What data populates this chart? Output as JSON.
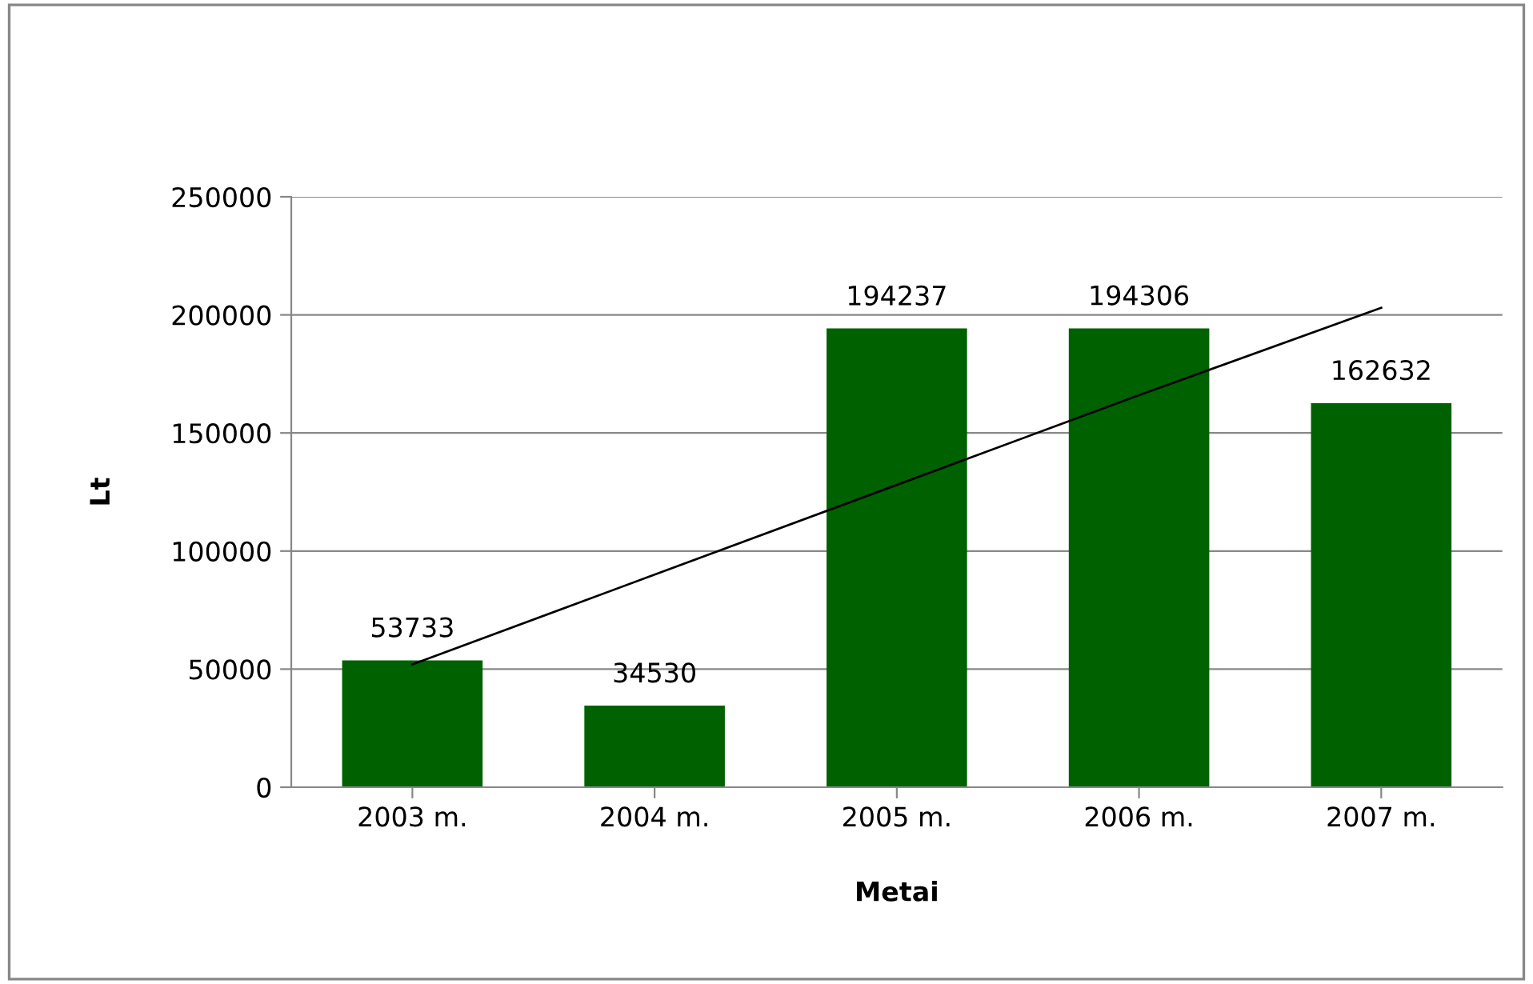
{
  "chart_data": {
    "type": "bar",
    "xlabel": "Metai",
    "ylabel": "Lt",
    "categories": [
      "2003 m.",
      "2004 m.",
      "2005 m.",
      "2006 m.",
      "2007 m."
    ],
    "series": [
      {
        "color": "#006100",
        "values": [
          53733,
          34530,
          194237,
          194306,
          162632
        ],
        "value_labels": [
          "53733",
          "34530",
          "194237",
          "194306",
          "162632"
        ]
      },
      {
        "type": "line",
        "color": "#000000",
        "values": [
          52000,
          90000,
          128000,
          166000,
          203000
        ]
      }
    ],
    "ylim": [
      0,
      250000
    ],
    "yticks": [
      0,
      50000,
      100000,
      150000,
      200000,
      250000
    ],
    "grid": "y",
    "legend": false
  }
}
